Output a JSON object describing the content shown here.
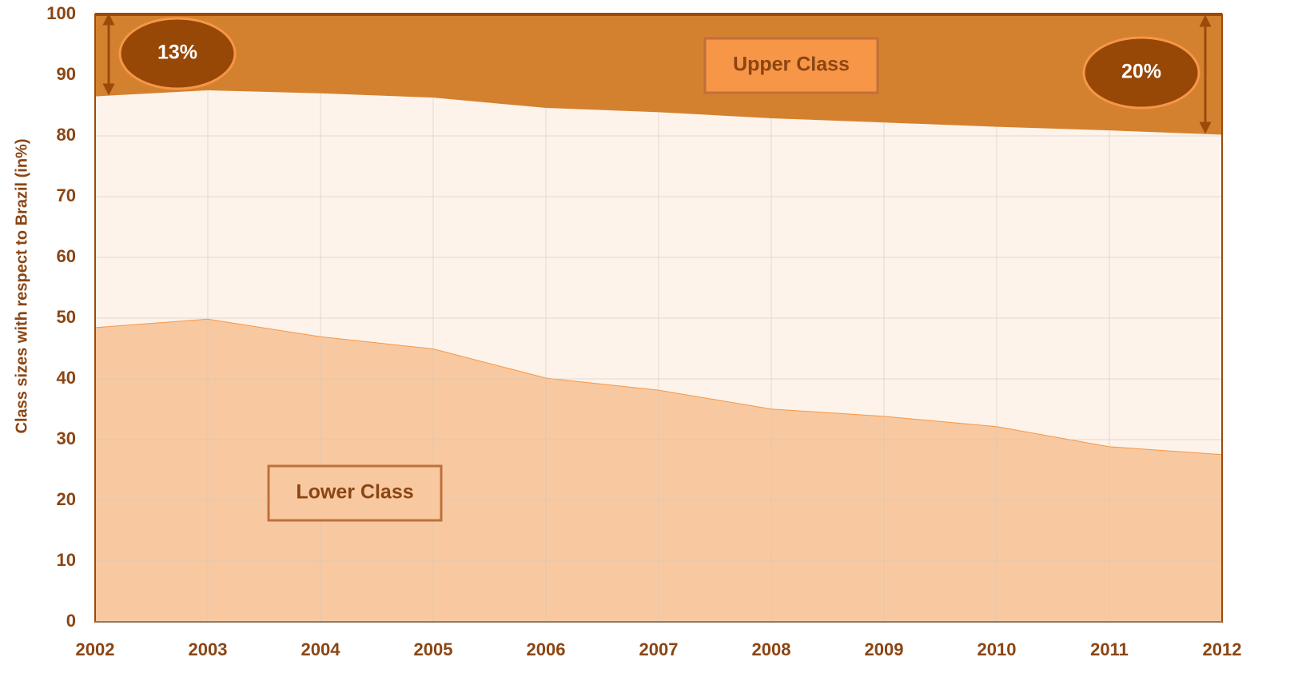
{
  "chart_data": {
    "type": "area",
    "stacked": true,
    "y_label": "Class sizes with respect to Brazil (in%)",
    "x": [
      2002,
      2003,
      2004,
      2005,
      2006,
      2007,
      2008,
      2009,
      2010,
      2011,
      2012
    ],
    "xlim": [
      2002,
      2012
    ],
    "xticks": [
      2002,
      2003,
      2004,
      2005,
      2006,
      2007,
      2008,
      2009,
      2010,
      2011,
      2012
    ],
    "ylim": [
      0,
      100
    ],
    "yticks": [
      0,
      10,
      20,
      30,
      40,
      50,
      60,
      70,
      80,
      90,
      100
    ],
    "grid": true,
    "series": [
      {
        "name": "Lower Class",
        "color": "#f8c9a0",
        "line_color": "#f79646",
        "values": [
          48.5,
          49.9,
          47,
          45,
          40.2,
          38.2,
          35.1,
          33.9,
          32.2,
          28.9,
          27.6
        ]
      },
      {
        "color": "#fdf3ea",
        "values": [
          38,
          37.6,
          40,
          41.3,
          44.4,
          45.7,
          47.8,
          48.3,
          49.3,
          52,
          52.6
        ]
      },
      {
        "name": "Upper Class",
        "color": "#d4812f",
        "line_color": "#9c4a0a",
        "values": [
          13.5,
          12.5,
          13,
          13.7,
          15.4,
          16.1,
          17.1,
          17.8,
          18.5,
          19.1,
          19.8
        ]
      }
    ],
    "annotations": [
      "13%",
      "20%"
    ]
  }
}
